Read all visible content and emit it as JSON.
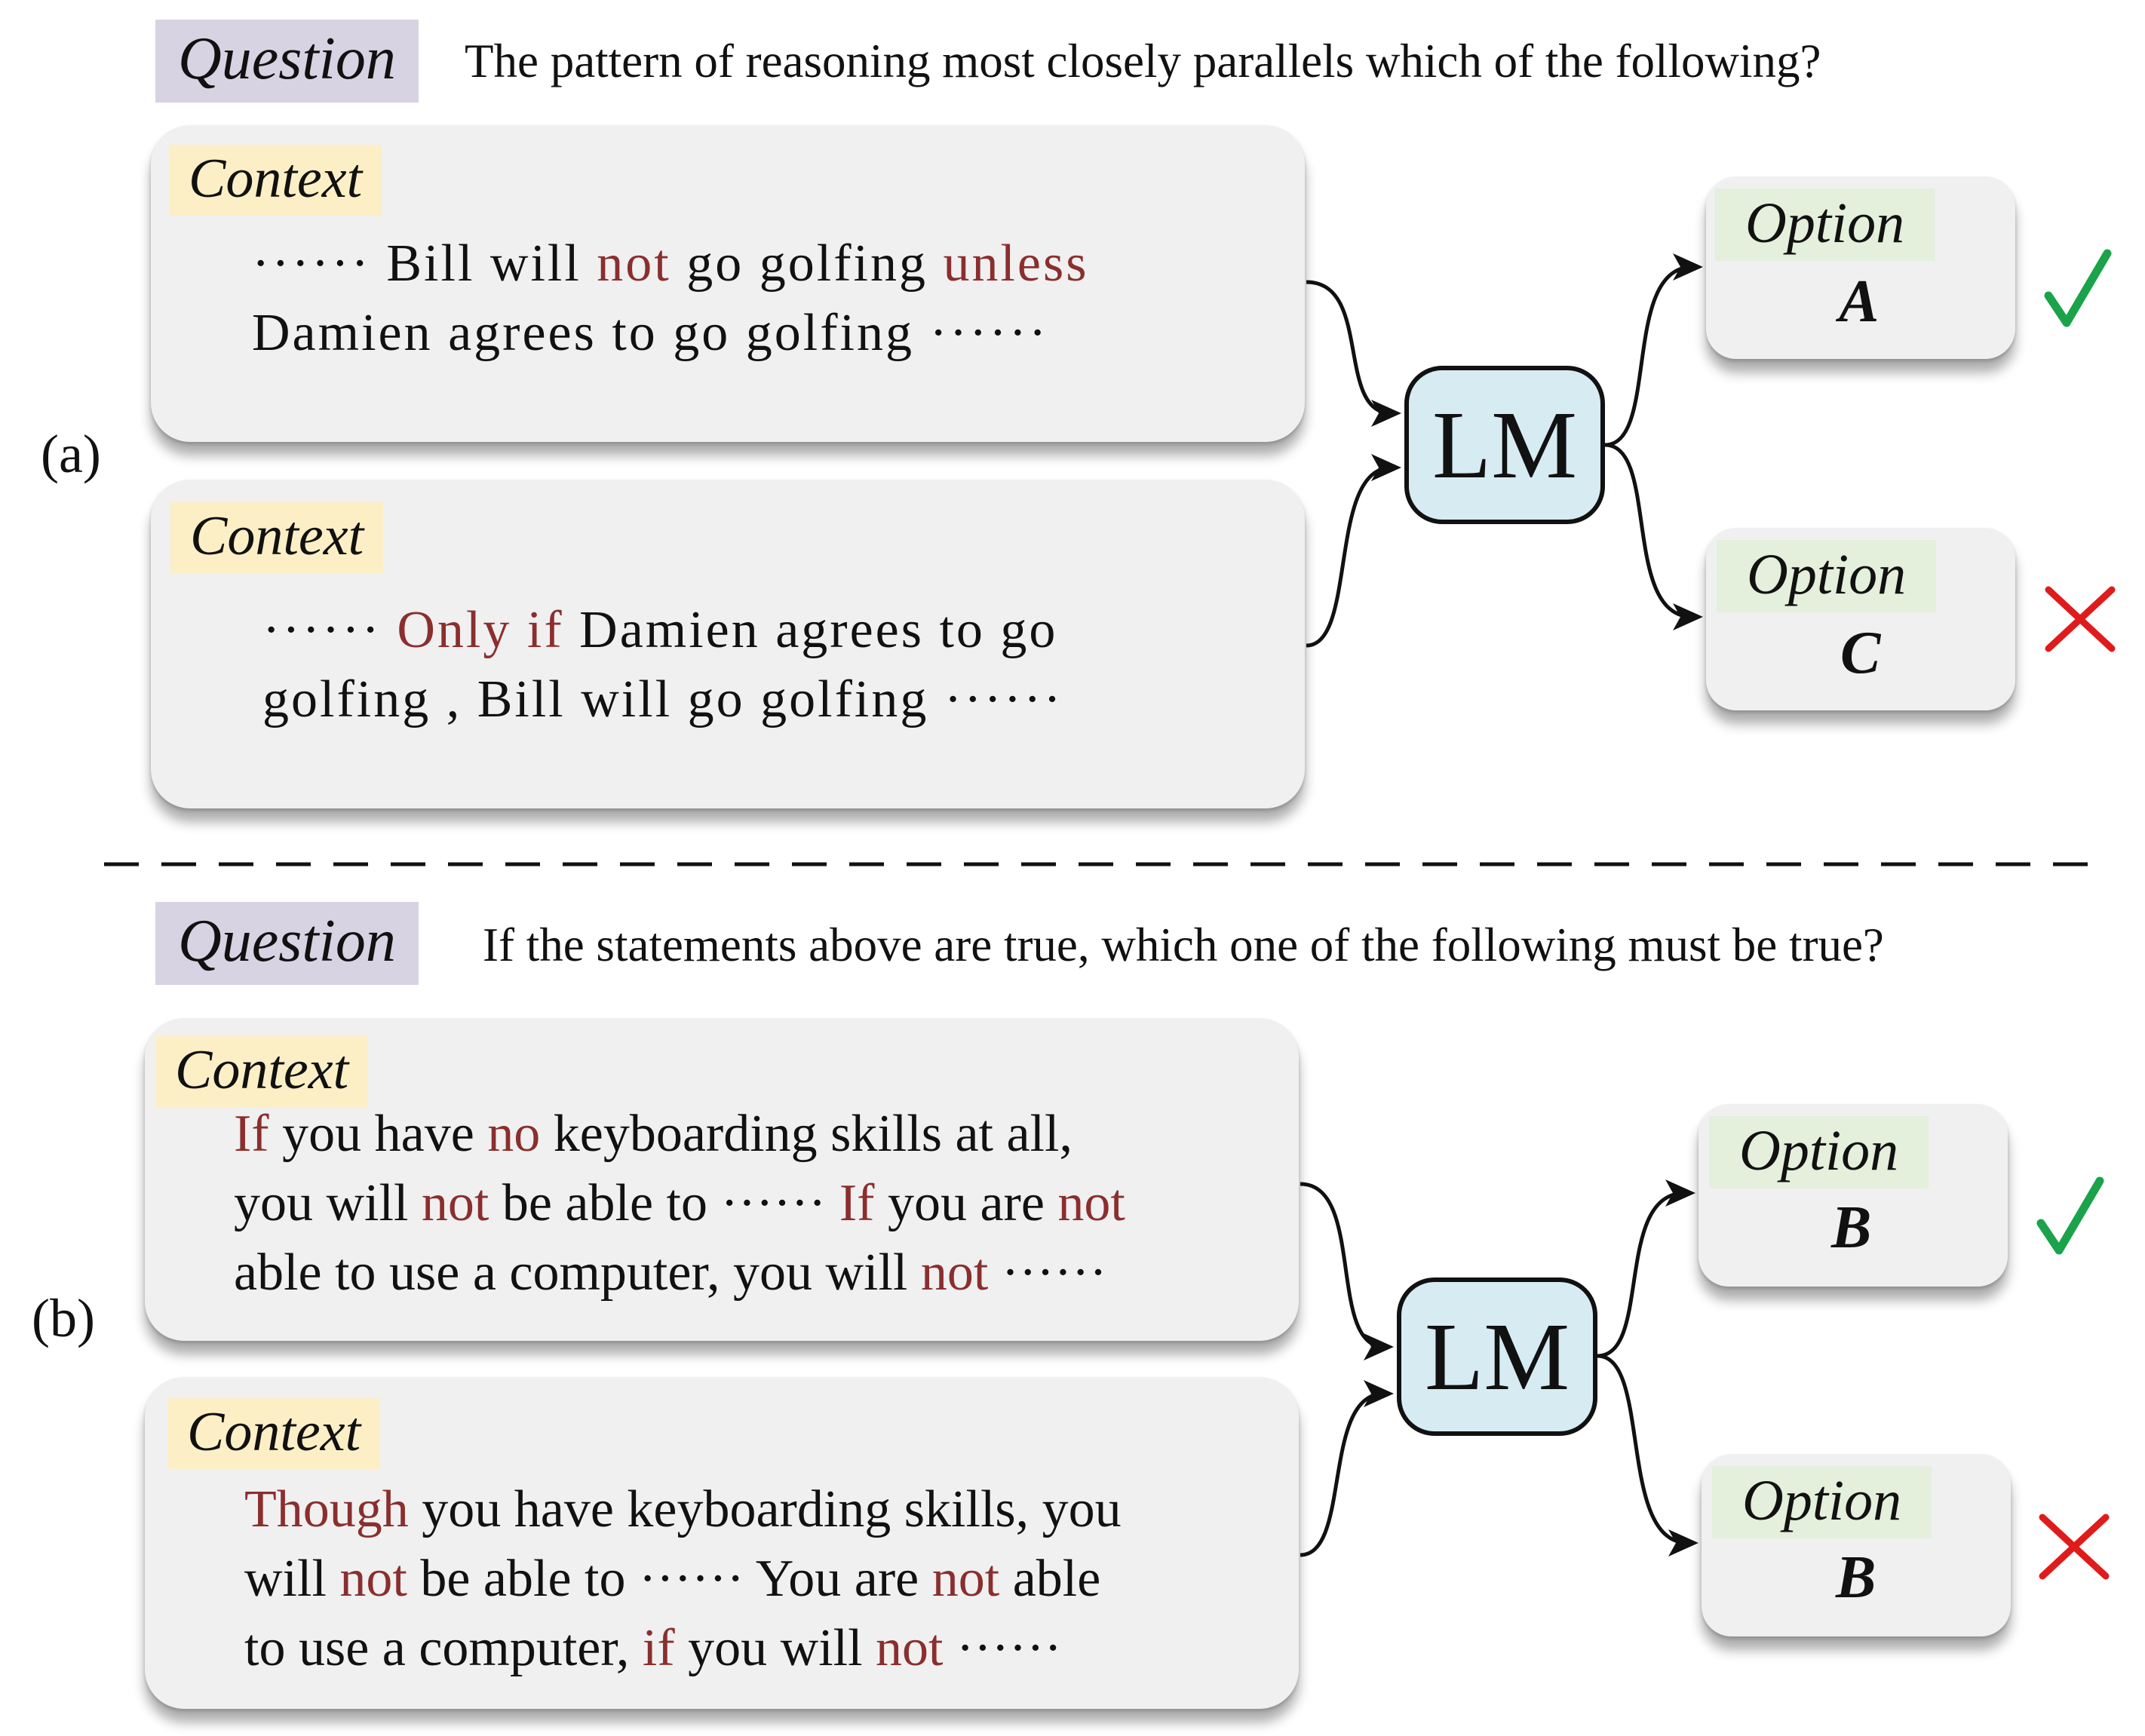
{
  "panels": [
    {
      "label": "(a)",
      "question_tag": "Question",
      "question": "The pattern of reasoning most closely parallels which of the following?",
      "contexts": [
        {
          "tag": "Context",
          "lines": [
            [
              {
                "t": "······ Bill will "
              },
              {
                "t": "not",
                "r": true
              },
              {
                "t": " go golfing "
              },
              {
                "t": "unless",
                "r": true
              }
            ],
            [
              {
                "t": "Damien agrees to go golfing ······"
              }
            ]
          ]
        },
        {
          "tag": "Context",
          "lines": [
            [
              {
                "t": "······ "
              },
              {
                "t": "Only if",
                "r": true
              },
              {
                "t": " Damien agrees to go"
              }
            ],
            [
              {
                "t": "golfing , Bill will go golfing ······"
              }
            ]
          ]
        }
      ],
      "model": "LM",
      "options": [
        {
          "tag": "Option",
          "letter": "A",
          "result": "correct"
        },
        {
          "tag": "Option",
          "letter": "C",
          "result": "wrong"
        }
      ]
    },
    {
      "label": "(b)",
      "question_tag": "Question",
      "question": "If the statements above are true, which one of the following must be true?",
      "contexts": [
        {
          "tag": "Context",
          "lines": [
            [
              {
                "t": "If",
                "r": true
              },
              {
                "t": " you have "
              },
              {
                "t": "no",
                "r": true
              },
              {
                "t": " keyboarding skills at all,"
              }
            ],
            [
              {
                "t": "you will "
              },
              {
                "t": "not",
                "r": true
              },
              {
                "t": " be able to ······ "
              },
              {
                "t": "If",
                "r": true
              },
              {
                "t": " you are "
              },
              {
                "t": "not",
                "r": true
              }
            ],
            [
              {
                "t": "able to use a computer, you will "
              },
              {
                "t": "not",
                "r": true
              },
              {
                "t": " ······"
              }
            ]
          ]
        },
        {
          "tag": "Context",
          "lines": [
            [
              {
                "t": "Though",
                "r": true
              },
              {
                "t": " you have keyboarding skills, you"
              }
            ],
            [
              {
                "t": "will "
              },
              {
                "t": "not",
                "r": true
              },
              {
                "t": " be able to ······ You are "
              },
              {
                "t": "not",
                "r": true
              },
              {
                "t": " able"
              }
            ],
            [
              {
                "t": "to use a computer, "
              },
              {
                "t": "if",
                "r": true
              },
              {
                "t": " you will "
              },
              {
                "t": "not",
                "r": true
              },
              {
                "t": " ······"
              }
            ]
          ]
        }
      ],
      "model": "LM",
      "options": [
        {
          "tag": "Option",
          "letter": "B",
          "result": "correct"
        },
        {
          "tag": "Option",
          "letter": "B",
          "result": "wrong"
        }
      ]
    }
  ],
  "icons": {
    "correct": "check-icon",
    "wrong": "cross-icon"
  },
  "colors": {
    "keyword": "#8b2e2e",
    "question_tag_bg": "#d8d3e3",
    "context_tag_bg": "#fcefc6",
    "option_tag_bg": "#e4efdc",
    "model_bg": "#d7ebf3",
    "box_bg": "#f0f0f0",
    "check": "#1aa34a",
    "cross": "#e01b1b"
  }
}
